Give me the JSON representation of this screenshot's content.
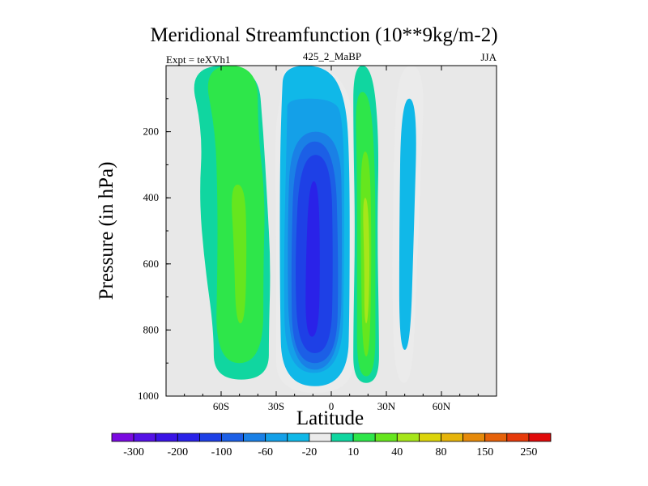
{
  "chart_data": {
    "type": "contour",
    "title": "Meridional Streamfunction (10**9kg/m-2)",
    "subtitle_left": "Expt = teXVh1",
    "subtitle_center": "425_2_MaBP",
    "subtitle_right": "JJA",
    "xlabel": "Latitude",
    "ylabel": "Pressure (in hPa)",
    "xlim": [
      -90,
      90
    ],
    "ylim": [
      0,
      1000
    ],
    "y_inverted": true,
    "x_ticks": [
      {
        "value": -60,
        "label": "60S"
      },
      {
        "value": -30,
        "label": "30S"
      },
      {
        "value": 0,
        "label": "0"
      },
      {
        "value": 30,
        "label": "30N"
      },
      {
        "value": 60,
        "label": "60N"
      }
    ],
    "y_ticks": [
      {
        "value": 200,
        "label": "200"
      },
      {
        "value": 400,
        "label": "400"
      },
      {
        "value": 600,
        "label": "600"
      },
      {
        "value": 800,
        "label": "800"
      },
      {
        "value": 1000,
        "label": "1000"
      }
    ],
    "levels": [
      -300,
      -250,
      -200,
      -150,
      -100,
      -80,
      -60,
      -40,
      -20,
      -10,
      10,
      20,
      40,
      60,
      80,
      100,
      150,
      200,
      250,
      300
    ],
    "colorbar_labels": [
      -300,
      -200,
      -100,
      -60,
      -20,
      10,
      40,
      80,
      150,
      250
    ],
    "colors": [
      "#7a0ae0",
      "#5512e6",
      "#3a14e6",
      "#2a22e8",
      "#1e40e6",
      "#1c5fe6",
      "#1a80e6",
      "#14a0e8",
      "#10b8e8",
      "#ebebeb",
      "#10d6a0",
      "#2ee64a",
      "#66e61e",
      "#a6e61a",
      "#dcd40a",
      "#e6b40a",
      "#e68a0a",
      "#e6620a",
      "#e63a0a",
      "#e00a0a"
    ],
    "background_color": "#e8e8e8",
    "regions": [
      {
        "name": "southern-cell-outer",
        "level": 10,
        "x_left": [
          -78,
          -70,
          -72,
          -69,
          -64,
          -64
        ],
        "x_right": [
          -40,
          -37,
          -35,
          -33,
          -34,
          -34
        ],
        "p": [
          0,
          200,
          400,
          600,
          800,
          950
        ]
      },
      {
        "name": "southern-cell-inner",
        "level": 20,
        "x_left": [
          -70,
          -63,
          -62,
          -62,
          -63
        ],
        "x_right": [
          -40,
          -40,
          -36,
          -37,
          -37
        ],
        "p": [
          0,
          200,
          400,
          600,
          900
        ]
      },
      {
        "name": "southern-cell-core",
        "level": 40,
        "x_left": [
          -55,
          -53,
          -52
        ],
        "x_right": [
          -47,
          -46,
          -47
        ],
        "p": [
          360,
          550,
          780
        ]
      },
      {
        "name": "tropical-cell-outer",
        "level": -10,
        "x_left": [
          -27,
          -27,
          -31,
          -30,
          -30,
          -30
        ],
        "x_right": [
          -2,
          10,
          12,
          12,
          12,
          12
        ],
        "p": [
          0,
          80,
          200,
          500,
          800,
          990
        ]
      },
      {
        "name": "tropical-cell-20",
        "level": -20,
        "x_left": [
          -26,
          -27,
          -28,
          -28,
          -27
        ],
        "x_right": [
          -2,
          8,
          10,
          10,
          9
        ],
        "p": [
          0,
          100,
          300,
          700,
          970
        ]
      },
      {
        "name": "tropical-cell-40",
        "level": -40,
        "x_left": [
          -24,
          -24,
          -26,
          -25
        ],
        "x_right": [
          0,
          7,
          7,
          6
        ],
        "p": [
          100,
          150,
          600,
          930
        ]
      },
      {
        "name": "tropical-cell-60",
        "level": -60,
        "x_left": [
          -22,
          -24,
          -23
        ],
        "x_right": [
          5,
          6,
          5
        ],
        "p": [
          200,
          500,
          920
        ]
      },
      {
        "name": "tropical-cell-80",
        "level": -80,
        "x_left": [
          -20,
          -22,
          -21
        ],
        "x_right": [
          2,
          4,
          3
        ],
        "p": [
          230,
          600,
          900
        ]
      },
      {
        "name": "tropical-cell-100",
        "level": -100,
        "x_left": [
          -17,
          -20,
          -18
        ],
        "x_right": [
          0,
          1,
          0
        ],
        "p": [
          270,
          600,
          870
        ]
      },
      {
        "name": "tropical-cell-core",
        "level": -150,
        "x_left": [
          -12,
          -14,
          -14
        ],
        "x_right": [
          -7,
          -6,
          -7
        ],
        "p": [
          350,
          600,
          820
        ]
      },
      {
        "name": "northern-cell-outer",
        "level": 10,
        "x_left": [
          12,
          12,
          13,
          12,
          12
        ],
        "x_right": [
          22,
          26,
          25,
          26,
          26
        ],
        "p": [
          0,
          200,
          500,
          800,
          960
        ]
      },
      {
        "name": "northern-cell-20",
        "level": 20,
        "x_left": [
          13,
          14,
          14,
          14
        ],
        "x_right": [
          21,
          24,
          24,
          24
        ],
        "p": [
          80,
          300,
          700,
          940
        ]
      },
      {
        "name": "northern-cell-40",
        "level": 40,
        "x_left": [
          16,
          16,
          17
        ],
        "x_right": [
          21,
          22,
          21
        ],
        "p": [
          260,
          550,
          880
        ]
      },
      {
        "name": "northern-cell-core",
        "level": 60,
        "x_left": [
          17,
          18,
          18
        ],
        "x_right": [
          20,
          21,
          20
        ],
        "p": [
          400,
          600,
          780
        ]
      },
      {
        "name": "northern-negative-cell",
        "level": -10,
        "x_left": [
          36,
          34,
          33,
          35
        ],
        "x_right": [
          51,
          49,
          46,
          44
        ],
        "p": [
          0,
          300,
          700,
          960
        ]
      },
      {
        "name": "northern-negative-inner",
        "level": -20,
        "x_left": [
          38,
          37,
          37
        ],
        "x_right": [
          47,
          45,
          43
        ],
        "p": [
          100,
          500,
          860
        ]
      }
    ]
  }
}
